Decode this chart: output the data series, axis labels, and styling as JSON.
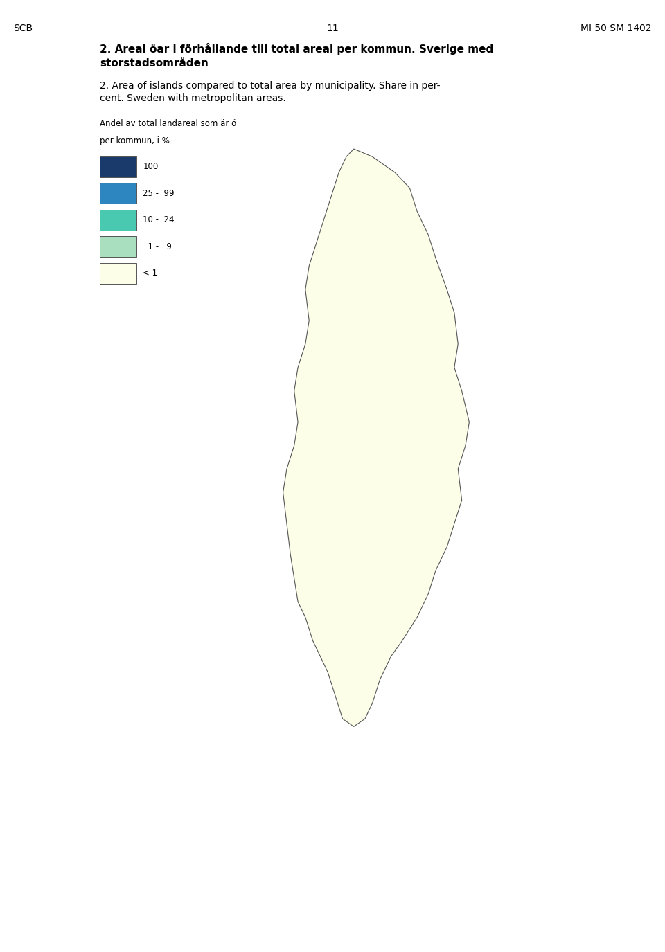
{
  "title_swedish": "2. Areal öar i förhållande till total areal per kommun. Sverige med storstadsområden",
  "title_english": "2. Area of islands compared to total area by municipality. Share in per-\ncent. Sweden with metropolitan areas.",
  "header_left": "SCB",
  "header_center": "11",
  "header_right": "MI 50 SM 1402",
  "legend_title_line1": "Andel av total landareal som är ö",
  "legend_title_line2": "per kommun, i %",
  "legend_categories": [
    {
      "label": "100",
      "color": "#1a3a6b"
    },
    {
      "label": "25 -  99",
      "color": "#2e86c1"
    },
    {
      "label": "10 -  24",
      "color": "#48c9b0"
    },
    {
      "label": "1 -   9",
      "color": "#a9dfbf"
    },
    {
      "label": "< 1",
      "color": "#fdfee8"
    }
  ],
  "colors": {
    "100": "#1a3a6b",
    "25-99": "#2e86c1",
    "10-24": "#48c9b0",
    "1-9": "#a9dfbf",
    "<1": "#fdfee8"
  },
  "border_color": "#555555",
  "background_color": "#ffffff",
  "fig_width": 9.6,
  "fig_height": 13.75,
  "dpi": 100
}
